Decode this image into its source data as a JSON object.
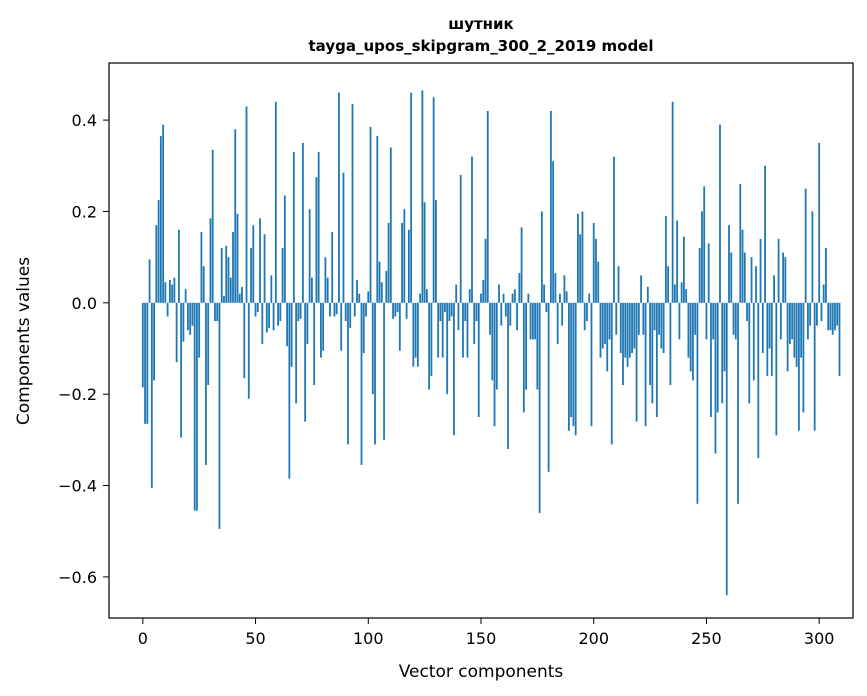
{
  "chart_data": {
    "type": "bar",
    "title_line1": "шутник",
    "title_line2": "tayga_upos_skipgram_300_2_2019 model",
    "xlabel": "Vector components",
    "ylabel": "Components values",
    "xlim": [
      -15,
      315
    ],
    "ylim": [
      -0.69,
      0.525
    ],
    "xticks": [
      0,
      50,
      100,
      150,
      200,
      250,
      300
    ],
    "xtick_labels": [
      "0",
      "50",
      "100",
      "150",
      "200",
      "250",
      "300"
    ],
    "yticks": [
      -0.6,
      -0.4,
      -0.2,
      0.0,
      0.2,
      0.4
    ],
    "ytick_labels": [
      "−0.6",
      "−0.4",
      "−0.2",
      "0.0",
      "0.2",
      "0.4"
    ],
    "bar_color": "#1f77b4",
    "values": [
      -0.185,
      -0.265,
      -0.265,
      0.095,
      -0.405,
      -0.17,
      0.17,
      0.225,
      0.365,
      0.39,
      0.045,
      -0.03,
      0.05,
      0.04,
      0.055,
      -0.13,
      0.16,
      -0.295,
      -0.085,
      0.03,
      -0.06,
      -0.07,
      -0.05,
      -0.455,
      -0.455,
      -0.12,
      0.155,
      0.08,
      -0.355,
      -0.18,
      0.185,
      0.335,
      -0.04,
      -0.04,
      -0.495,
      0.12,
      0.015,
      0.125,
      0.1,
      0.055,
      0.155,
      0.38,
      0.195,
      0.02,
      0.035,
      -0.165,
      0.43,
      -0.21,
      0.12,
      0.17,
      -0.03,
      -0.02,
      0.185,
      -0.09,
      0.15,
      -0.065,
      -0.055,
      0.06,
      -0.06,
      0.44,
      -0.05,
      -0.04,
      0.12,
      0.235,
      -0.095,
      -0.385,
      -0.14,
      0.33,
      -0.22,
      -0.04,
      -0.035,
      0.35,
      -0.26,
      -0.09,
      0.205,
      0.055,
      -0.18,
      0.275,
      0.33,
      -0.12,
      -0.105,
      0.1,
      0.055,
      -0.03,
      0.155,
      -0.03,
      -0.025,
      0.46,
      -0.105,
      0.285,
      -0.04,
      -0.31,
      -0.055,
      0.435,
      -0.03,
      0.05,
      0.02,
      -0.355,
      -0.11,
      -0.03,
      0.025,
      0.385,
      -0.2,
      -0.31,
      0.365,
      0.09,
      0.045,
      -0.3,
      0.07,
      0.175,
      0.34,
      -0.035,
      -0.03,
      -0.02,
      -0.105,
      0.175,
      0.205,
      -0.035,
      0.16,
      0.46,
      -0.14,
      -0.12,
      -0.14,
      0.02,
      0.465,
      0.22,
      0.03,
      -0.19,
      -0.16,
      0.45,
      0.225,
      -0.12,
      -0.04,
      -0.12,
      -0.02,
      -0.2,
      -0.04,
      -0.03,
      -0.29,
      0.04,
      -0.06,
      0.28,
      -0.12,
      -0.04,
      -0.12,
      0.03,
      0.32,
      -0.09,
      -0.04,
      -0.25,
      0.02,
      0.05,
      0.14,
      0.42,
      -0.07,
      -0.17,
      -0.27,
      -0.19,
      0.04,
      -0.05,
      0.02,
      -0.03,
      -0.32,
      -0.05,
      0.02,
      0.03,
      -0.06,
      0.065,
      0.165,
      -0.24,
      -0.19,
      0.02,
      -0.08,
      -0.08,
      -0.08,
      -0.19,
      -0.46,
      0.2,
      0.04,
      -0.02,
      -0.37,
      0.42,
      0.31,
      0.065,
      -0.09,
      0.02,
      -0.05,
      0.06,
      0.025,
      -0.28,
      -0.25,
      -0.27,
      -0.29,
      0.195,
      0.15,
      0.2,
      -0.06,
      -0.04,
      0.02,
      -0.27,
      0.175,
      0.14,
      0.09,
      -0.12,
      -0.1,
      -0.09,
      -0.15,
      -0.08,
      -0.31,
      0.32,
      -0.07,
      0.08,
      -0.11,
      -0.18,
      -0.12,
      -0.14,
      -0.12,
      -0.11,
      -0.1,
      -0.26,
      -0.07,
      0.06,
      -0.07,
      -0.27,
      0.035,
      -0.18,
      -0.22,
      -0.06,
      -0.25,
      -0.07,
      -0.1,
      -0.11,
      0.19,
      0.08,
      -0.18,
      0.44,
      0.04,
      0.18,
      -0.08,
      0.045,
      0.145,
      0.03,
      -0.12,
      -0.15,
      -0.17,
      -0.07,
      -0.44,
      0.12,
      0.2,
      0.255,
      -0.08,
      0.13,
      -0.25,
      -0.08,
      -0.33,
      -0.24,
      0.39,
      -0.22,
      -0.15,
      -0.64,
      0.17,
      0.11,
      -0.07,
      -0.08,
      -0.44,
      0.26,
      0.16,
      0.11,
      -0.04,
      -0.22,
      0.1,
      -0.17,
      0.08,
      -0.34,
      0.14,
      -0.11,
      0.3,
      -0.16,
      -0.1,
      -0.16,
      0.06,
      -0.29,
      0.14,
      -0.08,
      0.11,
      0.1,
      -0.15,
      -0.09,
      -0.08,
      -0.12,
      -0.14,
      -0.28,
      -0.12,
      -0.24,
      0.25,
      -0.08,
      -0.05,
      0.2,
      -0.28,
      -0.05,
      0.35,
      -0.04,
      0.04,
      0.12,
      -0.06,
      -0.06,
      -0.07,
      -0.06,
      -0.05,
      -0.16
    ]
  }
}
